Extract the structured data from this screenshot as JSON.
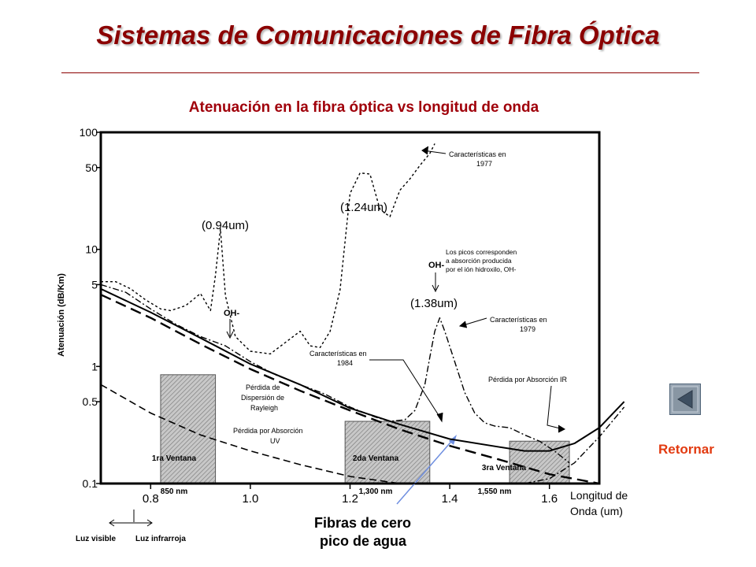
{
  "slide": {
    "title": "Sistemas de Comunicaciones de Fibra Óptica",
    "subtitle": "Atenuación en la fibra óptica vs longitud de onda",
    "return_label": "Retornar",
    "return_icon": "back-arrow-icon"
  },
  "chart_data": {
    "type": "line",
    "ylabel": "Atenuación (dB/Km)",
    "xlabel": "Longitud de Onda (um)",
    "y_scale": "log",
    "ylim": [
      0.1,
      100
    ],
    "xlim": [
      0.7,
      1.7
    ],
    "y_ticks": [
      "100",
      "50",
      "10",
      "5",
      "1",
      "0.5",
      "0.1"
    ],
    "y_tick_values": [
      100,
      50,
      10,
      5,
      1,
      0.5,
      0.1
    ],
    "x_ticks": [
      "0.8",
      "1.0",
      "1.2",
      "1.4",
      "1.6"
    ],
    "x_tick_values": [
      0.8,
      1.0,
      1.2,
      1.4,
      1.6
    ],
    "windows": [
      {
        "label": "1ra Ventana",
        "wavelength": "850 nm",
        "range": [
          0.82,
          0.93
        ],
        "top": 0.85
      },
      {
        "label": "2da Ventana",
        "wavelength": "1,300 nm",
        "range": [
          1.19,
          1.36
        ],
        "top": 0.34
      },
      {
        "label": "3ra Ventana",
        "wavelength": "1,550 nm",
        "range": [
          1.52,
          1.64
        ],
        "top": 0.23
      }
    ],
    "series": [
      {
        "name": "Características en 1977",
        "style": "dotted",
        "x": [
          0.7,
          0.73,
          0.76,
          0.79,
          0.82,
          0.84,
          0.87,
          0.9,
          0.92,
          0.93,
          0.94,
          0.95,
          0.97,
          1.0,
          1.04,
          1.07,
          1.1,
          1.12,
          1.14,
          1.16,
          1.18,
          1.2,
          1.22,
          1.24,
          1.26,
          1.28,
          1.3,
          1.32,
          1.34,
          1.36,
          1.37
        ],
        "y": [
          5.3,
          5.3,
          4.6,
          3.7,
          3.1,
          3.0,
          3.3,
          4.2,
          3.0,
          6.0,
          15.0,
          4.0,
          1.8,
          1.35,
          1.28,
          1.6,
          2.0,
          1.5,
          1.45,
          2.0,
          4.5,
          30.0,
          45.0,
          44.0,
          22.0,
          19.0,
          32.0,
          40.0,
          52.0,
          66.0,
          80.0
        ]
      },
      {
        "name": "Características en 1979",
        "style": "dash-dot",
        "x": [
          0.7,
          0.75,
          0.8,
          0.85,
          0.9,
          0.95,
          1.0,
          1.05,
          1.1,
          1.15,
          1.2,
          1.25,
          1.28,
          1.31,
          1.33,
          1.35,
          1.36,
          1.37,
          1.38,
          1.39,
          1.41,
          1.43,
          1.45,
          1.47,
          1.49,
          1.52,
          1.55,
          1.58,
          1.61,
          1.64
        ],
        "y": [
          5.0,
          4.3,
          3.1,
          2.3,
          1.8,
          1.5,
          1.1,
          0.85,
          0.7,
          0.58,
          0.45,
          0.37,
          0.34,
          0.35,
          0.42,
          0.7,
          1.2,
          2.0,
          2.6,
          2.0,
          1.1,
          0.6,
          0.4,
          0.33,
          0.31,
          0.3,
          0.26,
          0.23,
          0.19,
          0.15
        ]
      },
      {
        "name": "Características en 1984",
        "style": "solid",
        "x": [
          0.7,
          0.8,
          0.9,
          1.0,
          1.1,
          1.2,
          1.3,
          1.4,
          1.5,
          1.55,
          1.6,
          1.65,
          1.7,
          1.75
        ],
        "y": [
          4.6,
          2.9,
          1.75,
          1.05,
          0.7,
          0.44,
          0.32,
          0.24,
          0.205,
          0.19,
          0.19,
          0.22,
          0.3,
          0.5
        ]
      },
      {
        "name": "Pérdida de Dispersión de Rayleigh",
        "style": "dashed",
        "x": [
          0.7,
          0.8,
          0.9,
          1.0,
          1.1,
          1.2,
          1.3,
          1.4,
          1.5,
          1.6,
          1.7
        ],
        "y": [
          4.1,
          2.6,
          1.55,
          0.95,
          0.62,
          0.42,
          0.29,
          0.21,
          0.16,
          0.12,
          0.09
        ]
      },
      {
        "name": "Pérdida por Absorción UV",
        "style": "dashed",
        "x": [
          0.7,
          0.8,
          0.9,
          1.0,
          1.1,
          1.2,
          1.3,
          1.4,
          1.5,
          1.6
        ],
        "y": [
          0.7,
          0.4,
          0.26,
          0.19,
          0.145,
          0.115,
          0.1,
          0.09,
          0.085,
          0.08
        ]
      },
      {
        "name": "Pérdida por Absorción IR",
        "style": "dash-dot",
        "x": [
          1.45,
          1.5,
          1.55,
          1.6,
          1.65,
          1.7,
          1.75
        ],
        "y": [
          0.09,
          0.095,
          0.1,
          0.11,
          0.15,
          0.25,
          0.45
        ]
      }
    ],
    "annotations": {
      "peak_094": "(0.94um)",
      "peak_124": "(1.24um)",
      "peak_138": "(1.38um)",
      "oh_label_1": "OH-",
      "oh_label_2": "OH-",
      "oh_note": [
        "Los picos corresponden",
        "a absorción producida",
        "por el ión hidroxilo, OH-"
      ],
      "c1977": [
        "Características en",
        "1977"
      ],
      "c1979": [
        "Características en",
        "1979"
      ],
      "c1984": [
        "Características en",
        "1984"
      ],
      "rayleigh": [
        "Pérdida de",
        "Dispersión de",
        "Rayleigh"
      ],
      "uv": [
        "Pérdida por Absorción",
        "UV"
      ],
      "ir": "Pérdida por Absorción IR",
      "x_axis_title": [
        "Longitud de",
        "Onda (um)"
      ],
      "luz_visible": "Luz visible",
      "luz_infrarroja": "Luz infrarroja",
      "fibras": [
        "Fibras de cero",
        "pico de agua"
      ]
    }
  }
}
